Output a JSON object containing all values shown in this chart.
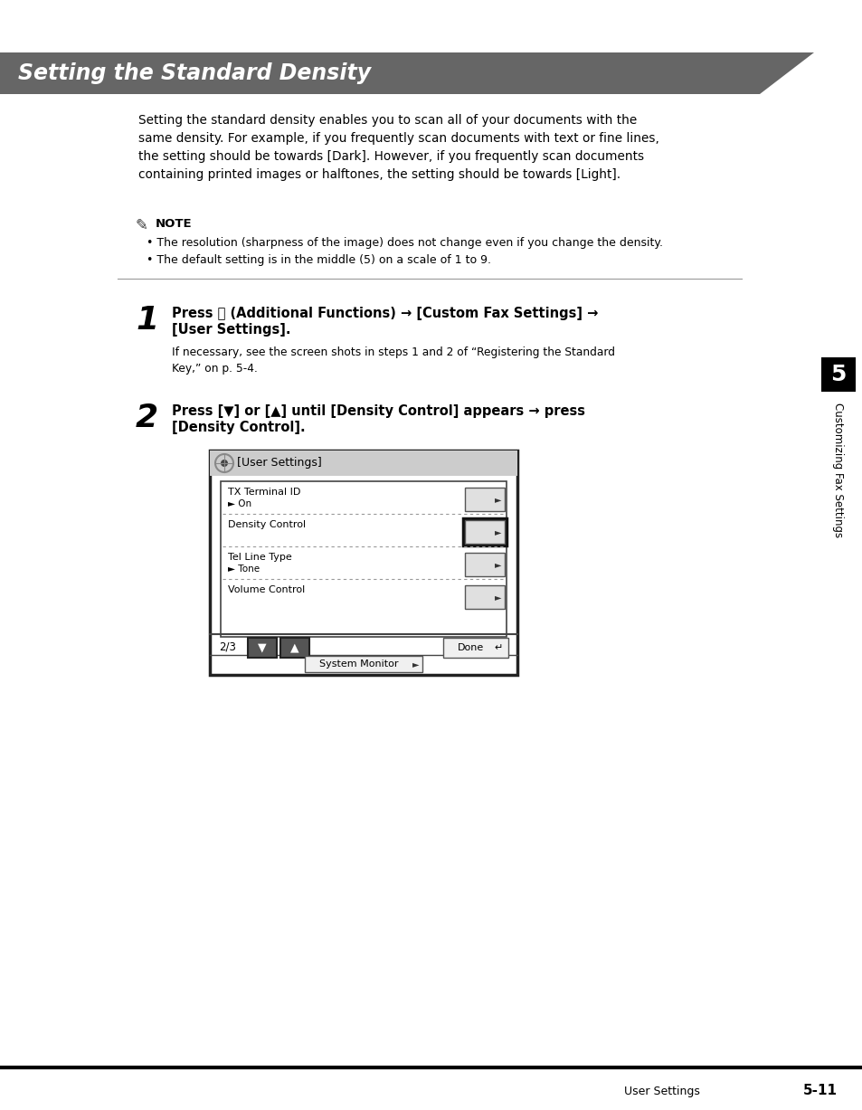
{
  "bg_color": "#ffffff",
  "header_bg": "#666666",
  "header_text": "Setting the Standard Density",
  "header_text_color": "#ffffff",
  "body_text_color": "#000000",
  "intro_paragraph": "Setting the standard density enables you to scan all of your documents with the\nsame density. For example, if you frequently scan documents with text or fine lines,\nthe setting should be towards [Dark]. However, if you frequently scan documents\ncontaining printed images or halftones, the setting should be towards [Light].",
  "note_label": "NOTE",
  "note_bullets": [
    "The resolution (sharpness of the image) does not change even if you change the density.",
    "The default setting is in the middle (5) on a scale of 1 to 9."
  ],
  "step1_num": "1",
  "step1_line1": "Press Ⓢ (Additional Functions) → [Custom Fax Settings] →",
  "step1_line2": "[User Settings].",
  "step1_sub": "If necessary, see the screen shots in steps 1 and 2 of “Registering the Standard\nKey,” on p. 5-4.",
  "step2_num": "2",
  "step2_line1": "Press [▼] or [▲] until [Density Control] appears → press",
  "step2_line2": "[Density Control].",
  "sidebar_text": "Customizing Fax Settings",
  "sidebar_num": "5",
  "footer_left": "User Settings",
  "footer_right": "5-11",
  "screen_title": "[User Settings]",
  "screen_rows": [
    {
      "label": "TX Terminal ID",
      "sub": "► On",
      "highlighted": false
    },
    {
      "label": "Density Control",
      "sub": null,
      "highlighted": true
    },
    {
      "label": "Tel Line Type",
      "sub": "► Tone",
      "highlighted": false
    },
    {
      "label": "Volume Control",
      "sub": null,
      "highlighted": false
    }
  ],
  "screen_bottom_left": "2/3",
  "screen_done": "Done",
  "screen_monitor": "System Monitor"
}
